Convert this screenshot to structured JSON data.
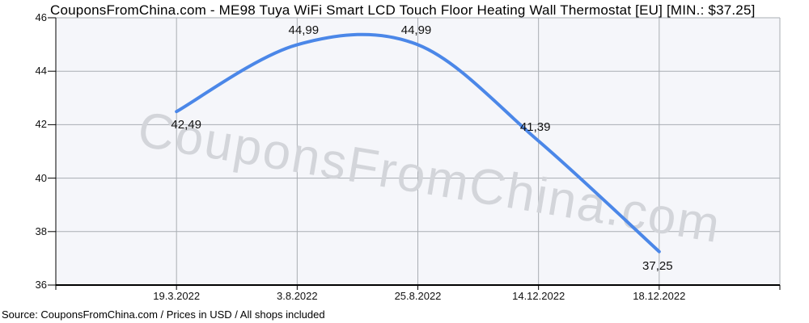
{
  "chart_data": {
    "type": "line",
    "title": "CouponsFromChina.com - ME98 Tuya WiFi Smart LCD Touch Floor Heating Wall Thermostat [EU] [MIN.: $37.25]",
    "categories": [
      "19.3.2022",
      "3.8.2022",
      "25.8.2022",
      "14.12.2022",
      "18.12.2022"
    ],
    "series": [
      {
        "name": "Price (USD)",
        "values": [
          42.49,
          44.99,
          44.99,
          41.39,
          37.25
        ]
      }
    ],
    "value_labels": [
      "42,49",
      "44,99",
      "44,99",
      "41,39",
      "37,25"
    ],
    "ylim": [
      36,
      46
    ],
    "yticks": [
      46,
      44,
      42,
      40,
      38,
      36
    ],
    "grid": true,
    "legend": "none",
    "curve": "smooth",
    "watermark": "CouponsFromChina.com",
    "source_note": "Source: CouponsFromChina.com / Prices in USD / All shops included",
    "colors": {
      "line": "#4b87e8",
      "plot_background": "#f5f6fa",
      "gridline": "#a9adb3",
      "axis": "#000000",
      "watermark": "#d3d5da",
      "text": "#111111"
    }
  }
}
